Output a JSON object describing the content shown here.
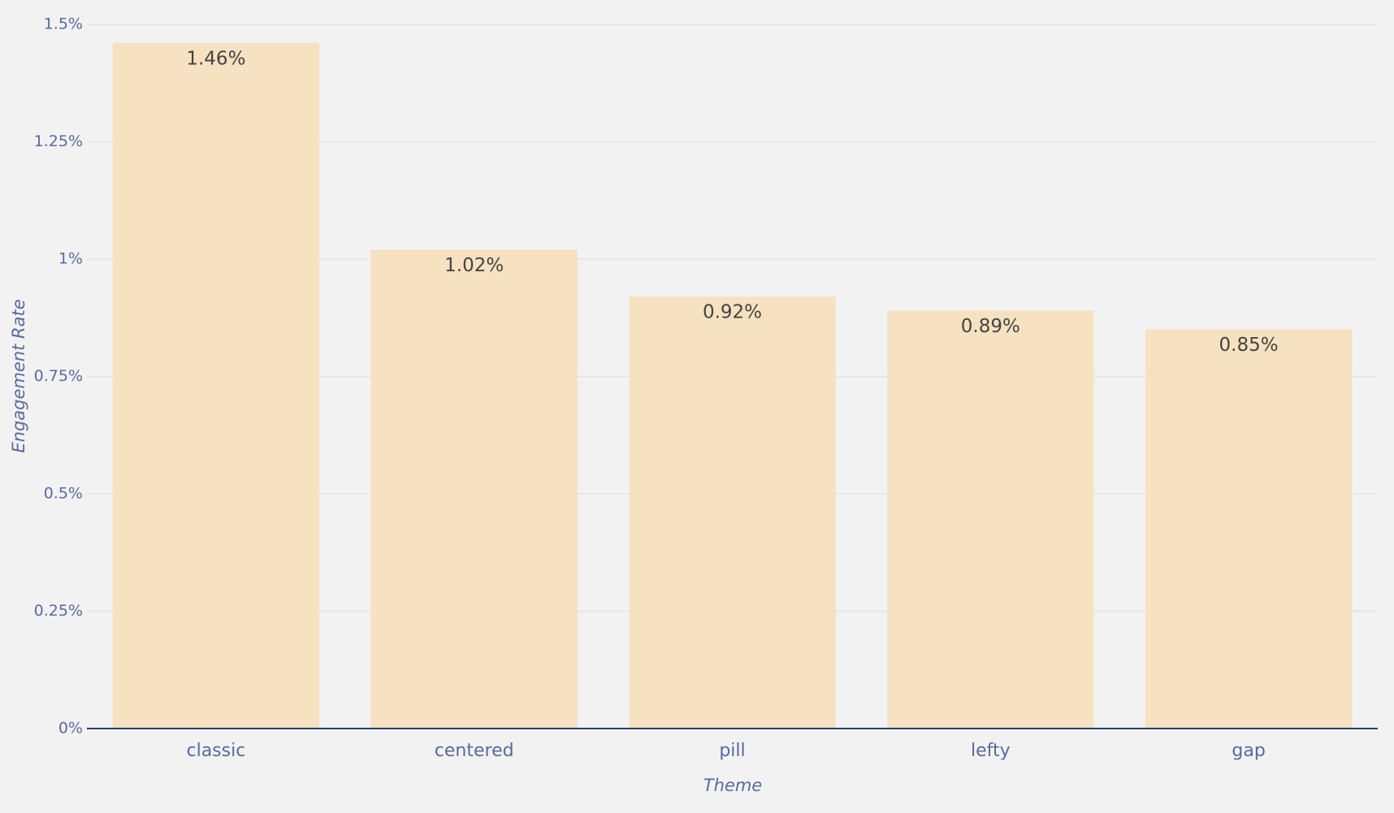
{
  "chart_data": {
    "type": "bar",
    "x_label": "Theme",
    "y_label": "Engagement Rate",
    "categories": [
      "classic",
      "centered",
      "pill",
      "lefty",
      "gap"
    ],
    "values": [
      1.46,
      1.02,
      0.92,
      0.89,
      0.85
    ],
    "value_labels": [
      "1.46%",
      "1.02%",
      "0.92%",
      "0.89%",
      "0.85%"
    ],
    "color": "#f6e1c0",
    "ylim": [
      0,
      1.5
    ],
    "yticks": [
      {
        "value": 0,
        "label": "0%"
      },
      {
        "value": 0.25,
        "label": "0.25%"
      },
      {
        "value": 0.5,
        "label": "0.5%"
      },
      {
        "value": 0.75,
        "label": "0.75%"
      },
      {
        "value": 1,
        "label": "1%"
      },
      {
        "value": 1.25,
        "label": "1.25%"
      },
      {
        "value": 1.5,
        "label": "1.5%"
      }
    ],
    "grid": true
  }
}
